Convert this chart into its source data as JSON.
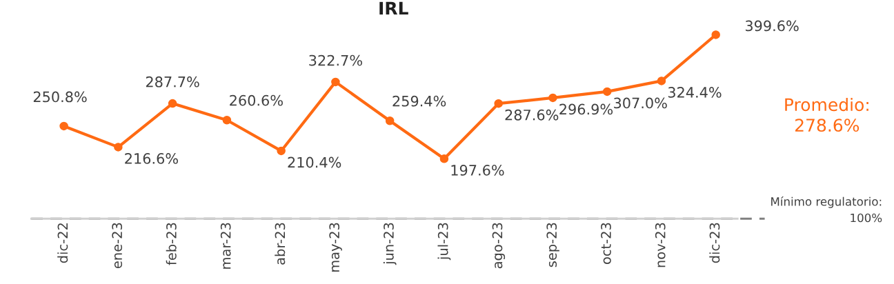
{
  "chart_data": {
    "type": "line",
    "title": "IRL",
    "categories": [
      "dic-22",
      "ene-23",
      "feb-23",
      "mar-23",
      "abr-23",
      "may-23",
      "jun-23",
      "jul-23",
      "ago-23",
      "sep-23",
      "oct-23",
      "nov-23",
      "dic-23"
    ],
    "series": [
      {
        "color": "#ff6a13",
        "values": [
          250.8,
          216.6,
          287.7,
          260.6,
          210.4,
          322.7,
          259.4,
          197.6,
          287.6,
          296.9,
          307.0,
          324.4,
          399.6
        ],
        "value_labels": [
          "250.8%",
          "216.6%",
          "287.7%",
          "260.6%",
          "210.4%",
          "322.7%",
          "259.4%",
          "197.6%",
          "287.6%",
          "296.9%",
          "307.0%",
          "324.4%",
          "399.6%"
        ]
      }
    ],
    "marker": "circle",
    "line_style": "solid",
    "grid": false,
    "legend": false,
    "tick_labels": "x",
    "ref_lines": [
      {
        "axis": "y",
        "value": 100,
        "label": "Mínimo regulatorio:\n100%",
        "color": "#808080",
        "line_style": "dashed"
      }
    ],
    "annotations": [
      "Promedio:\n278.6%"
    ]
  }
}
